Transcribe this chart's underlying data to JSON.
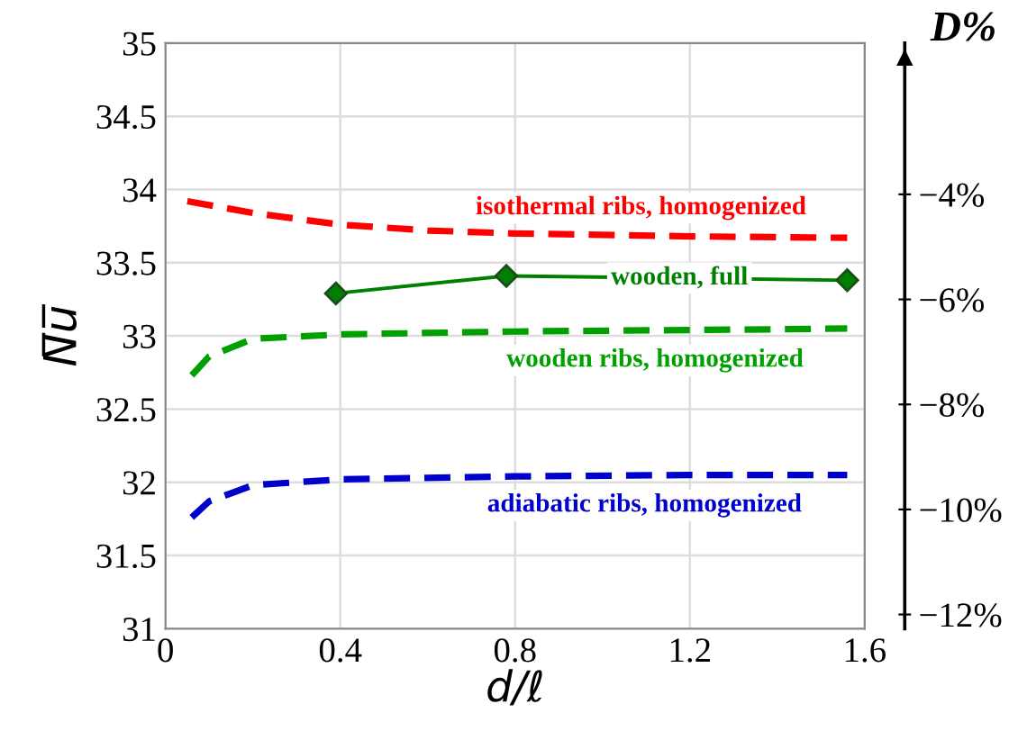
{
  "chart_data": {
    "type": "line",
    "xlabel": "d/ℓ",
    "ylabel": "N̅u̅",
    "y2label": "D%",
    "xlim": [
      0,
      1.6
    ],
    "xticks": [
      0,
      0.4,
      0.8,
      1.2,
      1.6
    ],
    "ylim": [
      31,
      35
    ],
    "yticks": [
      31,
      31.5,
      32,
      32.5,
      33,
      33.5,
      34,
      34.5,
      35
    ],
    "y2lim": [
      -12.27,
      -1.12
    ],
    "y2ticks": [
      {
        "value": -4,
        "label": "−4%"
      },
      {
        "value": -6,
        "label": "−6%"
      },
      {
        "value": -8,
        "label": "−8%"
      },
      {
        "value": -10,
        "label": "−10%"
      },
      {
        "value": -12,
        "label": "−12%"
      }
    ],
    "grid": true,
    "legend": false,
    "series": [
      {
        "name": "isothermal ribs, homogenized",
        "color": "#ff0000",
        "line_style": "dashed",
        "marker": "none",
        "x": [
          0.05,
          0.2,
          0.4,
          0.6,
          0.8,
          1.2,
          1.56
        ],
        "values": [
          33.92,
          33.84,
          33.76,
          33.72,
          33.7,
          33.68,
          33.67
        ]
      },
      {
        "name": "wooden, full",
        "color": "#008000",
        "line_style": "solid",
        "marker": "diamond",
        "x": [
          0.39,
          0.78,
          1.56
        ],
        "values": [
          33.29,
          33.41,
          33.38
        ]
      },
      {
        "name": "wooden ribs, homogenized",
        "color": "#00a000",
        "line_style": "dashed",
        "marker": "none",
        "x": [
          0.06,
          0.1,
          0.2,
          0.4,
          0.8,
          1.2,
          1.56
        ],
        "values": [
          32.73,
          32.86,
          32.98,
          33.01,
          33.03,
          33.04,
          33.05
        ]
      },
      {
        "name": "adiabatic ribs, homogenized",
        "color": "#0000cc",
        "line_style": "dashed",
        "marker": "none",
        "x": [
          0.06,
          0.1,
          0.2,
          0.4,
          0.8,
          1.2,
          1.56
        ],
        "values": [
          31.76,
          31.87,
          31.98,
          32.02,
          32.04,
          32.05,
          32.05
        ]
      }
    ]
  }
}
